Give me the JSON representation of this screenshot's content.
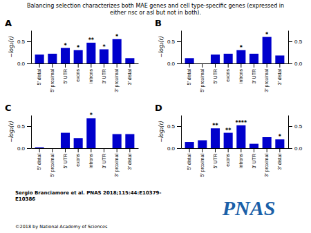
{
  "title": "Balancing selection characterizes both MAE genes and cell type-specific genes (expressed in\neither nsc or asl but not in both).",
  "annotations": [
    {
      "text": "Sergio Branciamore et al. PNAS 2018;115:44:E10379-\nE10386"
    },
    {
      "text": "©2018 by National Academy of Sciences"
    },
    {
      "text": "PNAS",
      "color": "#1a5fa8"
    }
  ],
  "chart_data": [
    {
      "type": "bar",
      "title": "A",
      "categories": [
        "5' distal",
        "5' proximal",
        "5' UTR",
        "exons",
        "introns",
        "3' UTR",
        "3' proximal",
        "3' distal"
      ],
      "values": [
        0.2,
        0.22,
        0.35,
        0.3,
        0.47,
        0.32,
        0.55,
        0.12
      ],
      "color": "#0000CC",
      "ylabel": "−log₂(r)",
      "ylim": [
        0,
        0.75
      ],
      "yticks": [
        {
          "value": 0.0,
          "label": "0.0"
        },
        {
          "value": 0.5,
          "label": "0.5"
        }
      ],
      "annotations": [
        {
          "text": "*",
          "category": "5' UTR"
        },
        {
          "text": "*",
          "category": "exons"
        },
        {
          "text": "**",
          "category": "introns"
        },
        {
          "text": "*",
          "category": "3' UTR"
        },
        {
          "text": "*",
          "category": "3' proximal"
        }
      ]
    },
    {
      "type": "bar",
      "title": "B",
      "categories": [
        "5' distal",
        "5' proximal",
        "5' UTR",
        "exons",
        "introns",
        "3' UTR",
        "3' proximal",
        "3' distal"
      ],
      "values": [
        0.12,
        0.0,
        0.2,
        0.22,
        0.3,
        0.22,
        0.6,
        0.18
      ],
      "color": "#0000CC",
      "ylabel": "−log₂(r)",
      "ylim": [
        0,
        0.75
      ],
      "yticks": [
        {
          "value": 0.0,
          "label": "0.0"
        },
        {
          "value": 0.5,
          "label": "0.5"
        }
      ],
      "y2lim": [
        0,
        0.75
      ],
      "y2ticks": [
        {
          "value": 0.0,
          "label": "0.0"
        },
        {
          "value": 0.5,
          "label": "0.5"
        }
      ],
      "annotations": [
        {
          "text": "*",
          "category": "introns"
        },
        {
          "text": "*",
          "category": "3' proximal"
        }
      ]
    },
    {
      "type": "bar",
      "title": "C",
      "categories": [
        "5' distal",
        "5' proximal",
        "5' UTR",
        "exons",
        "introns",
        "3' UTR",
        "3' proximal",
        "3' distal"
      ],
      "values": [
        0.02,
        0.0,
        0.35,
        0.23,
        0.68,
        0.0,
        0.32,
        0.32
      ],
      "color": "#0000CC",
      "ylabel": "−log₂(r)",
      "ylim": [
        0,
        0.75
      ],
      "yticks": [
        {
          "value": 0.0,
          "label": "0.0"
        },
        {
          "value": 0.5,
          "label": "0.5"
        }
      ],
      "annotations": [
        {
          "text": "*",
          "category": "introns"
        }
      ]
    },
    {
      "type": "bar",
      "title": "D",
      "categories": [
        "5' distal",
        "5' proximal",
        "5' UTR",
        "exons",
        "introns",
        "3' UTR",
        "3' proximal",
        "3' distal"
      ],
      "values": [
        0.14,
        0.18,
        0.45,
        0.35,
        0.52,
        0.1,
        0.25,
        0.2
      ],
      "color": "#0000CC",
      "ylabel": "−log₂(r)",
      "ylim": [
        0,
        0.75
      ],
      "yticks": [
        {
          "value": 0.0,
          "label": "0.0"
        },
        {
          "value": 0.5,
          "label": "0.5"
        }
      ],
      "y2lim": [
        0,
        0.75
      ],
      "y2ticks": [
        {
          "value": 0.0,
          "label": "0.0"
        },
        {
          "value": 0.5,
          "label": "0.5"
        }
      ],
      "annotations": [
        {
          "text": "**",
          "category": "5' UTR"
        },
        {
          "text": "**",
          "category": "exons"
        },
        {
          "text": "****",
          "category": "introns"
        },
        {
          "text": "*",
          "category": "3' distal"
        }
      ]
    }
  ]
}
